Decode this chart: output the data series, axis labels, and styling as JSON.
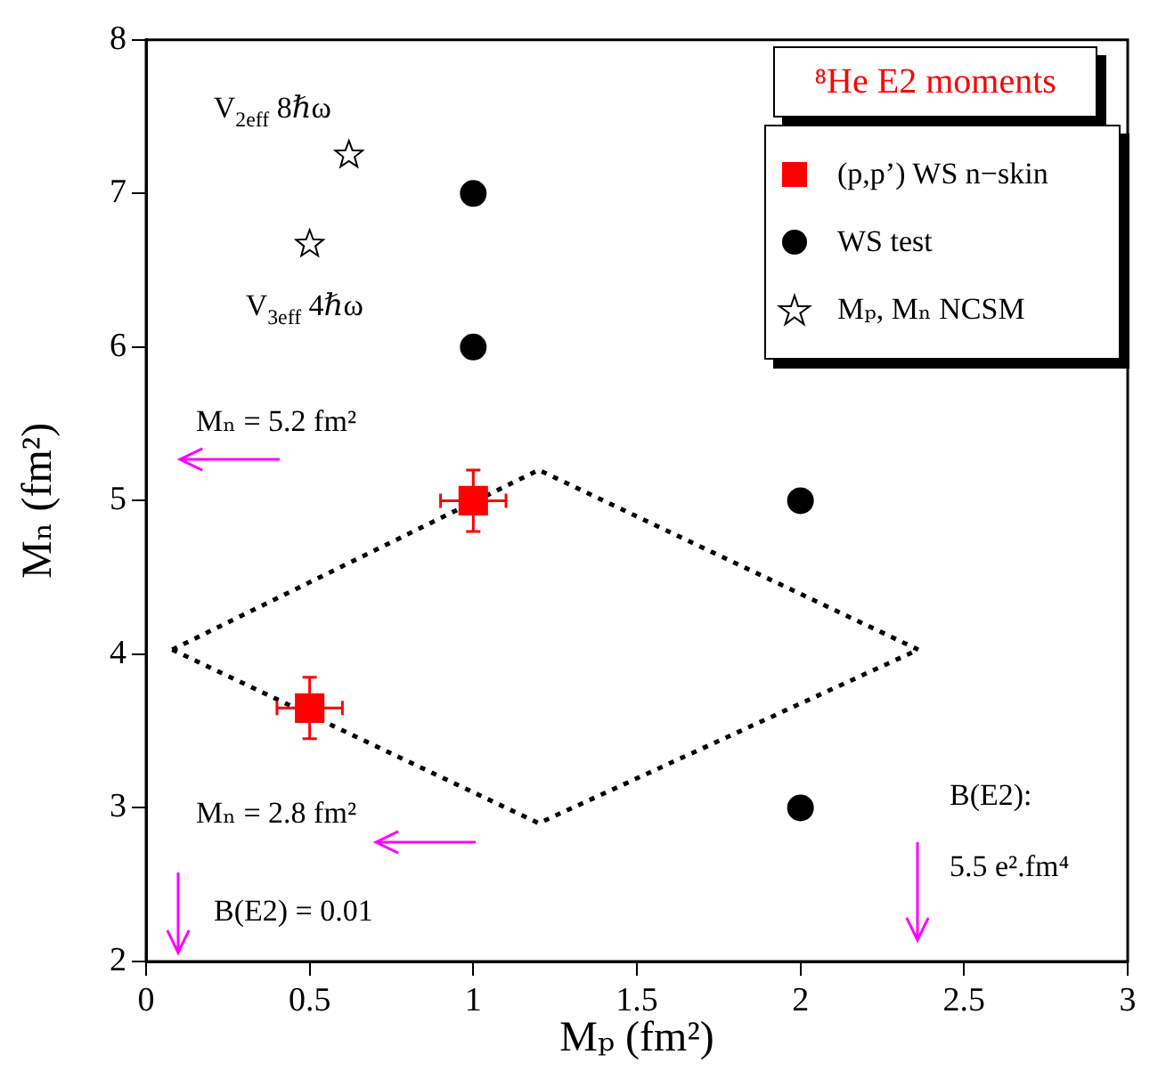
{
  "chart_data": {
    "type": "scatter",
    "title": "⁸He E2 moments",
    "xlabel": "Mₚ (fm²)",
    "ylabel": "Mₙ (fm²)",
    "xlim": [
      0,
      3
    ],
    "ylim": [
      2,
      8
    ],
    "xticks": [
      0,
      0.5,
      1,
      1.5,
      2,
      2.5,
      3
    ],
    "yticks": [
      2,
      3,
      4,
      5,
      6,
      7,
      8
    ],
    "legend": "top right",
    "series": [
      {
        "name": "(p,p’) WS n−skin",
        "color": "#ff0000",
        "marker": "square",
        "x": [
          0.5,
          1
        ],
        "values": [
          3.65,
          5.0
        ],
        "errors": [
          0.2,
          0.2
        ],
        "xerrors": [
          0.1,
          0.1
        ]
      },
      {
        "name": "WS test",
        "color": "#000000",
        "marker": "circle",
        "x": [
          1,
          1,
          2,
          2
        ],
        "values": [
          7,
          6,
          5,
          3
        ]
      },
      {
        "name": "Mₚ, Mₙ  NCSM",
        "color": "#000000",
        "marker": "star",
        "x": [
          0.62,
          0.5
        ],
        "values": [
          7.25,
          6.67
        ]
      },
      {
        "type": "line",
        "color": "#000000",
        "marker": "none",
        "line_style": "dotted",
        "x": [
          0.08,
          1.2,
          2.36
        ],
        "values": [
          4.03,
          5.2,
          4.03
        ]
      },
      {
        "type": "line",
        "color": "#000000",
        "marker": "none",
        "line_style": "dotted",
        "x": [
          0.08,
          1.2,
          2.36
        ],
        "values": [
          4.03,
          2.9,
          4.03
        ]
      }
    ],
    "annotations": [
      {
        "text": "V$_{2eff}$ 8ℏω",
        "x": 0.62,
        "y": 7.25
      },
      {
        "text": "V$_{3eff}$ 4ℏω",
        "x": 0.5,
        "y": 6.67
      },
      "Mₙ = 5.2 fm²",
      "Mₙ = 2.8 fm²",
      "B(E2) = 0.01",
      "B(E2):",
      "5.5 e².fm⁴"
    ]
  }
}
